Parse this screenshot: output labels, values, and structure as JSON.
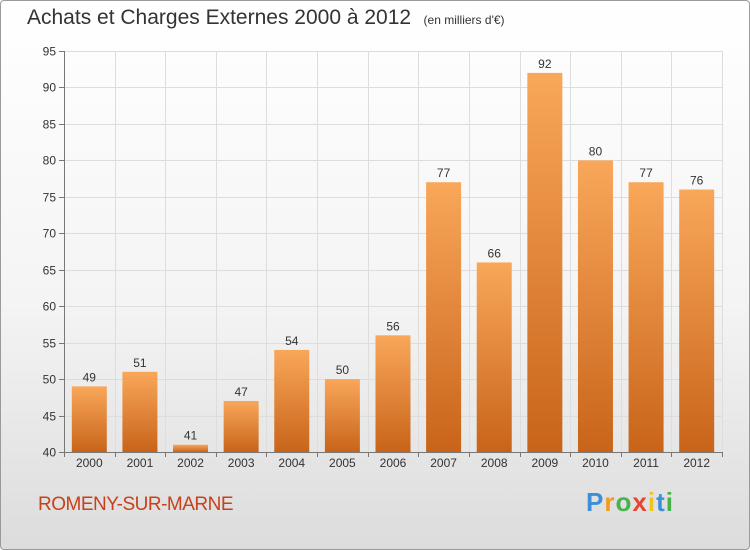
{
  "title": "Achats et Charges Externes 2000 à 2012",
  "unit": "(en milliers d'€)",
  "city": "ROMENY-SUR-MARNE",
  "brand": {
    "name": "Proxiti",
    "letters": [
      {
        "ch": "P",
        "color": "#3d8fd8"
      },
      {
        "ch": "r",
        "color": "#f29c1f"
      },
      {
        "ch": "o",
        "color": "#46b34a"
      },
      {
        "ch": "x",
        "color": "#e9442e"
      },
      {
        "ch": "i",
        "color": "#f2c21f"
      },
      {
        "ch": "t",
        "color": "#3d8fd8"
      },
      {
        "ch": "i",
        "color": "#46b34a"
      }
    ]
  },
  "colors": {
    "bar_top": "#f9a75a",
    "bar_bottom": "#c8641a",
    "city": "#c7411a"
  },
  "chart_data": {
    "type": "bar",
    "categories": [
      "2000",
      "2001",
      "2002",
      "2003",
      "2004",
      "2005",
      "2006",
      "2007",
      "2008",
      "2009",
      "2010",
      "2011",
      "2012"
    ],
    "values": [
      49,
      51,
      41,
      47,
      54,
      50,
      56,
      77,
      66,
      92,
      80,
      77,
      76
    ],
    "ylim": [
      40,
      95
    ],
    "yticks": [
      40,
      45,
      50,
      55,
      60,
      65,
      70,
      75,
      80,
      85,
      90,
      95
    ],
    "grid": true,
    "data_labels": true
  }
}
